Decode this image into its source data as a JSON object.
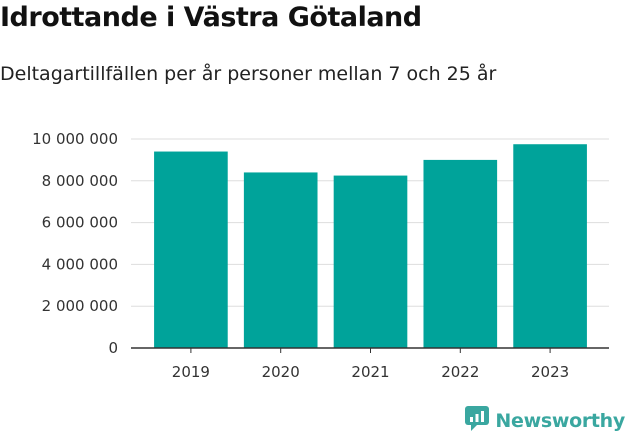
{
  "header": {
    "title": "Idrottande i Västra Götaland",
    "subtitle": "Deltagartillfällen per år personer mellan 7 och 25 år"
  },
  "brand": {
    "name": "Newsworthy",
    "icon": "newsworthy-logo-icon",
    "color": "#3aa7a0"
  },
  "chart_data": {
    "type": "bar",
    "title": "Idrottande i Västra Götaland",
    "subtitle": "Deltagartillfällen per år personer mellan 7 och 25 år",
    "xlabel": "",
    "ylabel": "",
    "categories": [
      "2019",
      "2020",
      "2021",
      "2022",
      "2023"
    ],
    "values": [
      9400000,
      8400000,
      8250000,
      9000000,
      9750000
    ],
    "ylim": [
      0,
      10000000
    ],
    "yticks": [
      0,
      2000000,
      4000000,
      6000000,
      8000000,
      10000000
    ],
    "ytick_labels": [
      "0",
      "2 000 000",
      "4 000 000",
      "6 000 000",
      "8 000 000",
      "10 000 000"
    ],
    "bar_color": "#00a39a",
    "grid": true,
    "legend": "none"
  }
}
